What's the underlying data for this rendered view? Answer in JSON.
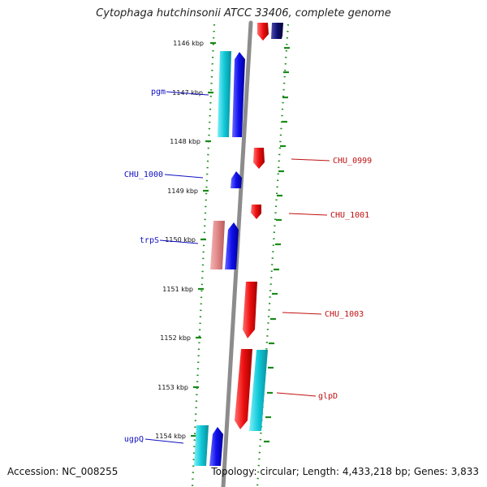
{
  "title": "Cytophaga hutchinsonii ATCC 33406, complete genome",
  "footer": {
    "accession": "Accession: NC_008255",
    "stats": "Topology: circular; Length: 4,433,218 bp; Genes: 3,833"
  },
  "colors": {
    "axis": "#8c8c8c",
    "dots": "#1a8a1a",
    "forward_blue": "#1010ee",
    "reverse_red": "#ee1010",
    "cyan": "#10c8d8",
    "pink": "#e08888",
    "navy": "#101070",
    "label_blue": "#1010c0",
    "label_red": "#c01010"
  },
  "ticks": [
    {
      "label": "1146 kbp"
    },
    {
      "label": "1147 kbp"
    },
    {
      "label": "1148 kbp"
    },
    {
      "label": "1149 kbp"
    },
    {
      "label": "1150 kbp"
    },
    {
      "label": "1151 kbp"
    },
    {
      "label": "1152 kbp"
    },
    {
      "label": "1153 kbp"
    },
    {
      "label": "1154 kbp"
    }
  ],
  "genes_left": [
    {
      "label": "pgm",
      "color": "#1010c0"
    },
    {
      "label": "CHU_1000",
      "color": "#1010c0"
    },
    {
      "label": "trpS",
      "color": "#1010c0"
    },
    {
      "label": "ugpQ",
      "color": "#1010c0"
    }
  ],
  "genes_right": [
    {
      "label": "CHU_0999",
      "color": "#c01010"
    },
    {
      "label": "CHU_1001",
      "color": "#c01010"
    },
    {
      "label": "CHU_1003",
      "color": "#c01010"
    },
    {
      "label": "glpD",
      "color": "#c01010"
    }
  ]
}
